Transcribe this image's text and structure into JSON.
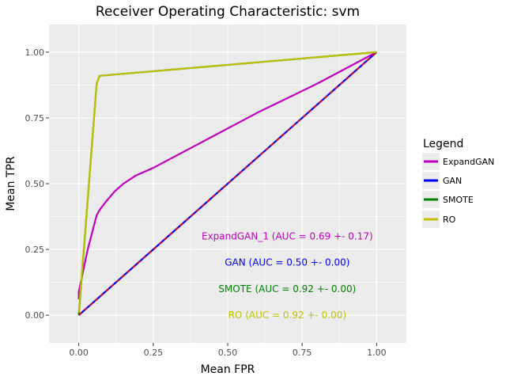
{
  "chart_data": {
    "type": "line",
    "title": "Receiver Operating Characteristic: svm",
    "xlabel": "Mean FPR",
    "ylabel": "Mean TPR",
    "xlim": [
      -0.1,
      1.1
    ],
    "ylim": [
      -0.105,
      1.105
    ],
    "xticks": [
      0,
      0.25,
      0.5,
      0.75,
      1.0
    ],
    "xtick_labels": [
      "0.00",
      "0.25",
      "0.50",
      "0.75",
      "1.00"
    ],
    "yticks": [
      0,
      0.25,
      0.5,
      0.75,
      1.0
    ],
    "ytick_labels": [
      "0.00",
      "0.25",
      "0.50",
      "0.75",
      "1.00"
    ],
    "grid": true,
    "legend": {
      "title": "Legend",
      "position": "right",
      "entries": [
        "ExpandGAN",
        "GAN",
        "SMOTE",
        "RO"
      ]
    },
    "series": [
      {
        "name": "ExpandGAN",
        "color": "#bf00bf",
        "x": [
          0.0,
          0.0,
          0.03,
          0.06,
          0.07,
          0.09,
          0.12,
          0.15,
          0.19,
          0.25,
          0.4,
          0.6,
          0.8,
          1.0
        ],
        "y": [
          0.06,
          0.09,
          0.25,
          0.38,
          0.4,
          0.43,
          0.47,
          0.5,
          0.53,
          0.56,
          0.65,
          0.77,
          0.88,
          1.0
        ]
      },
      {
        "name": "GAN",
        "color": "#0000ff",
        "x": [
          0.0,
          1.0
        ],
        "y": [
          0.0,
          1.0
        ]
      },
      {
        "name": "SMOTE",
        "color": "#008000",
        "x": [
          0.0,
          0.06,
          0.07,
          1.0
        ],
        "y": [
          0.0,
          0.88,
          0.91,
          1.0
        ]
      },
      {
        "name": "RO",
        "color": "#bfbf00",
        "x": [
          0.0,
          0.06,
          0.07,
          1.0
        ],
        "y": [
          0.01,
          0.88,
          0.91,
          1.0
        ]
      }
    ],
    "diagonal": {
      "color": "#ff0000",
      "x": [
        0.0,
        1.0
      ],
      "y": [
        0.0,
        1.0
      ]
    },
    "annotations": [
      {
        "text": "ExpandGAN_1 (AUC = 0.69 +- 0.17)",
        "x": 0.7,
        "y": 0.3,
        "color": "#bf00bf"
      },
      {
        "text": "GAN (AUC = 0.50 +- 0.00)",
        "x": 0.7,
        "y": 0.2,
        "color": "#0000ff"
      },
      {
        "text": "SMOTE (AUC = 0.92 +- 0.00)",
        "x": 0.7,
        "y": 0.1,
        "color": "#008000"
      },
      {
        "text": "RO (AUC = 0.92 +- 0.00)",
        "x": 0.7,
        "y": 0.0,
        "color": "#bfbf00"
      }
    ]
  }
}
